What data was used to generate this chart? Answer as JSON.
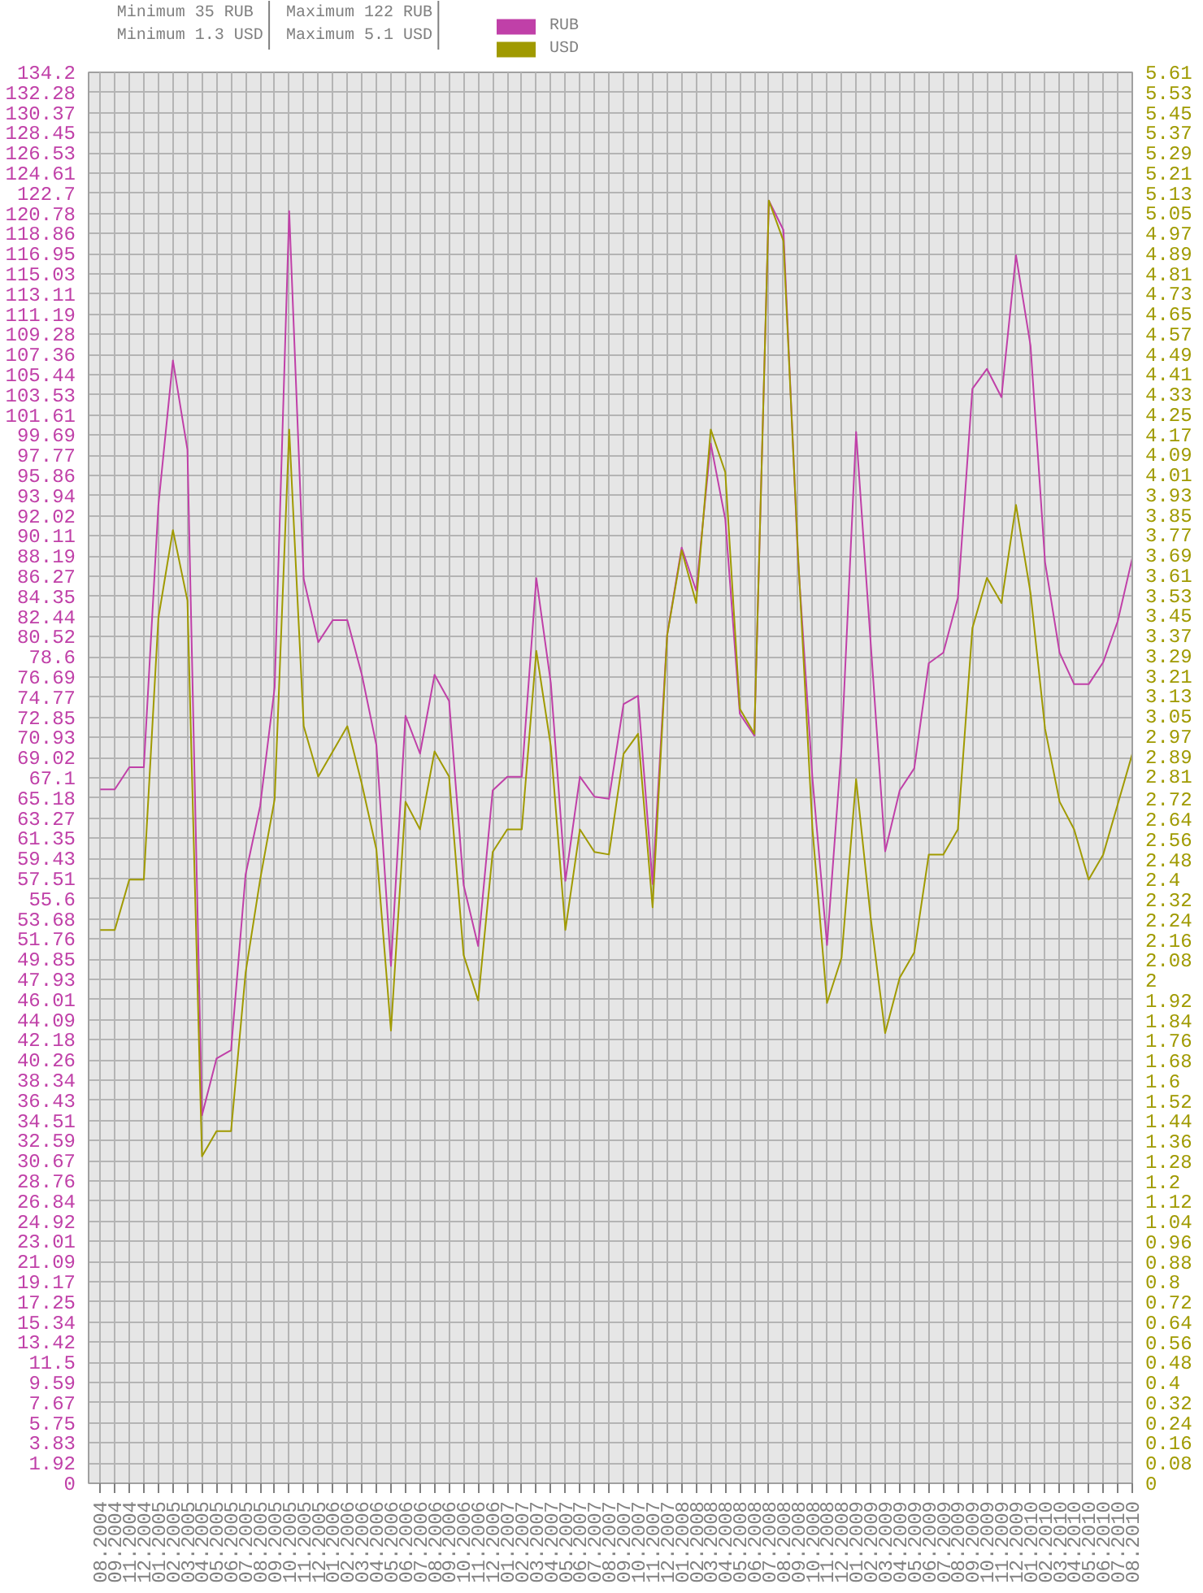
{
  "chart_data": {
    "type": "line",
    "annotations": [
      "Minimum 35 RUB",
      "Minimum 1.3 USD",
      "Maximum 122 RUB",
      "Maximum 5.1 USD"
    ],
    "categories": [
      "08.2004",
      "09.2004",
      "11.2004",
      "12.2004",
      "01.2005",
      "02.2005",
      "03.2005",
      "04.2005",
      "05.2005",
      "06.2005",
      "07.2005",
      "08.2005",
      "09.2005",
      "10.2005",
      "11.2005",
      "12.2005",
      "01.2006",
      "02.2006",
      "03.2006",
      "04.2006",
      "05.2006",
      "06.2006",
      "07.2006",
      "08.2006",
      "09.2006",
      "10.2006",
      "11.2006",
      "12.2006",
      "01.2007",
      "02.2007",
      "03.2007",
      "04.2007",
      "05.2007",
      "06.2007",
      "07.2007",
      "08.2007",
      "09.2007",
      "10.2007",
      "11.2007",
      "12.2007",
      "01.2008",
      "02.2008",
      "03.2008",
      "04.2008",
      "05.2008",
      "06.2008",
      "07.2008",
      "08.2008",
      "09.2008",
      "10.2008",
      "11.2008",
      "12.2008",
      "01.2009",
      "02.2009",
      "03.2009",
      "04.2009",
      "05.2009",
      "06.2009",
      "07.2009",
      "08.2009",
      "09.2009",
      "10.2009",
      "11.2009",
      "12.2009",
      "01.2010",
      "02.2010",
      "03.2010",
      "04.2010",
      "05.2010",
      "06.2010",
      "07.2010",
      "08.2010"
    ],
    "series": [
      {
        "name": "RUB",
        "color": "#c040a8",
        "axis": "y",
        "values": [
          66,
          66,
          68.1,
          68.1,
          93,
          106.8,
          98.3,
          35,
          40.4,
          41.2,
          57.9,
          64.4,
          75.7,
          121,
          86,
          80,
          82.1,
          82.1,
          76.9,
          70.2,
          49.2,
          73,
          69.4,
          76.9,
          74.4,
          56.9,
          51.1,
          65.9,
          67.2,
          67.2,
          86.1,
          76.1,
          57.3,
          67.2,
          65.3,
          65.1,
          74.1,
          74.9,
          57,
          80.7,
          89,
          84.9,
          98.9,
          91.7,
          73.2,
          71.1,
          122,
          119.2,
          88,
          67,
          51.2,
          70,
          100,
          80,
          60.1,
          65.9,
          68,
          78,
          79,
          84.2,
          104.1,
          106,
          103.3,
          116.8,
          108.2,
          87.6,
          79,
          76,
          76,
          78.1,
          82,
          88
        ]
      },
      {
        "name": "USD",
        "color": "#a09a00",
        "axis": "y2",
        "values": [
          2.2,
          2.2,
          2.4,
          2.4,
          3.44,
          3.79,
          3.51,
          1.3,
          1.4,
          1.4,
          2.03,
          2.4,
          2.72,
          4.19,
          3.01,
          2.81,
          2.91,
          3.01,
          2.78,
          2.52,
          1.8,
          2.71,
          2.6,
          2.91,
          2.81,
          2.1,
          1.92,
          2.51,
          2.6,
          2.6,
          3.31,
          2.93,
          2.2,
          2.6,
          2.51,
          2.5,
          2.9,
          2.98,
          2.29,
          3.37,
          3.71,
          3.5,
          4.19,
          4.02,
          3.08,
          2.98,
          5.1,
          4.94,
          3.7,
          2.6,
          1.91,
          2.09,
          2.8,
          2.25,
          1.79,
          2.01,
          2.11,
          2.5,
          2.5,
          2.6,
          3.4,
          3.6,
          3.5,
          3.89,
          3.54,
          3,
          2.71,
          2.6,
          2.4,
          2.5,
          2.7,
          2.9
        ]
      }
    ],
    "ylim": [
      0,
      134.2
    ],
    "yticks": [
      0,
      1.92,
      3.83,
      5.75,
      7.67,
      9.59,
      11.5,
      13.42,
      15.34,
      17.25,
      19.17,
      21.09,
      23.01,
      24.92,
      26.84,
      28.76,
      30.67,
      32.59,
      34.51,
      36.43,
      38.34,
      40.26,
      42.18,
      44.09,
      46.01,
      47.93,
      49.85,
      51.76,
      53.68,
      55.6,
      57.51,
      59.43,
      61.35,
      63.27,
      65.18,
      67.1,
      69.02,
      70.93,
      72.85,
      74.77,
      76.69,
      78.6,
      80.52,
      82.44,
      84.35,
      86.27,
      88.19,
      90.11,
      92.02,
      93.94,
      95.86,
      97.77,
      99.69,
      101.61,
      103.53,
      105.44,
      107.36,
      109.28,
      111.19,
      113.11,
      115.03,
      116.95,
      118.86,
      120.78,
      122.7,
      124.61,
      126.53,
      128.45,
      130.37,
      132.28,
      134.2
    ],
    "y2lim": [
      0,
      5.61
    ],
    "y2ticks": [
      0,
      0.08,
      0.16,
      0.24,
      0.32,
      0.4,
      0.48,
      0.56,
      0.64,
      0.72,
      0.8,
      0.88,
      0.96,
      1.04,
      1.12,
      1.2,
      1.28,
      1.36,
      1.44,
      1.52,
      1.6,
      1.68,
      1.76,
      1.84,
      1.92,
      2,
      2.08,
      2.16,
      2.24,
      2.32,
      2.4,
      2.48,
      2.56,
      2.64,
      2.72,
      2.81,
      2.89,
      2.97,
      3.05,
      3.13,
      3.21,
      3.29,
      3.37,
      3.45,
      3.53,
      3.61,
      3.69,
      3.77,
      3.85,
      3.93,
      4.01,
      4.09,
      4.17,
      4.25,
      4.33,
      4.41,
      4.49,
      4.57,
      4.65,
      4.73,
      4.81,
      4.89,
      4.97,
      5.05,
      5.13,
      5.21,
      5.29,
      5.37,
      5.45,
      5.53,
      5.61
    ],
    "grid": true,
    "legend": "top"
  }
}
